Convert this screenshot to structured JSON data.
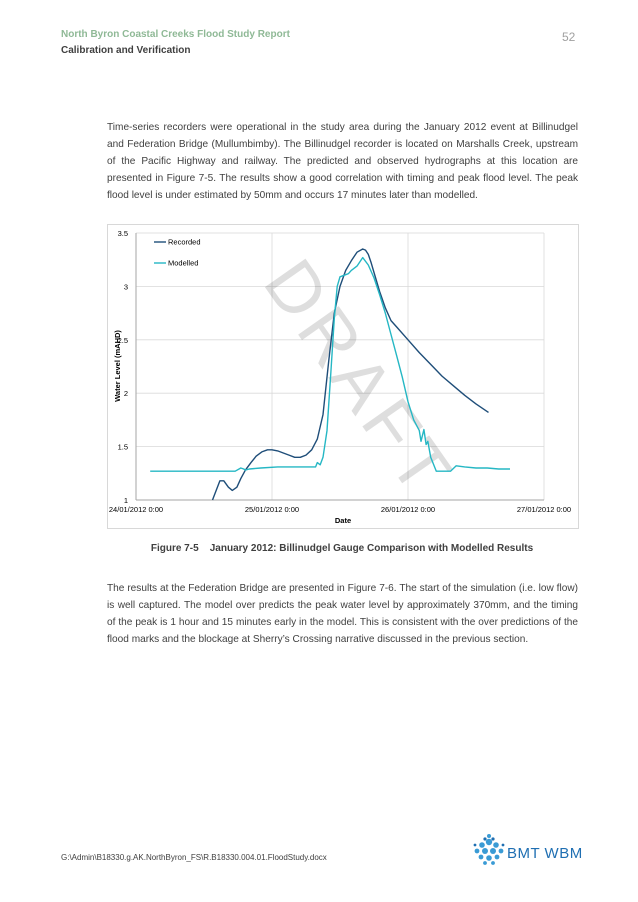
{
  "header": {
    "report_title": "North Byron Coastal Creeks Flood Study Report",
    "section": "Calibration and Verification",
    "page_number": "52"
  },
  "paragraphs": [
    "Time-series recorders were operational in the study area during the January 2012 event at Billinudgel and Federation Bridge (Mullumbimby). The Billinudgel recorder is located on Marshalls Creek, upstream of the Pacific Highway and railway. The predicted and observed hydrographs at this location are presented in Figure 7-5. The results show a good correlation with timing and peak flood level. The peak flood level is under estimated by 50mm and occurs 17 minutes later than modelled.",
    "The results at the Federation Bridge are presented in Figure 7-6. The start of the simulation (i.e. low flow) is well captured. The model over predicts the peak water level by approximately 370mm, and the timing of the peak is 1 hour and 15 minutes early in the model. This is consistent with the over predictions of the flood marks and the blockage at Sherry’s Crossing narrative discussed in the previous section."
  ],
  "figure": {
    "caption": "Figure 7-5    January 2012: Billinudgel Gauge Comparison with Modelled Results",
    "watermark": "DRAFT"
  },
  "chart_data": {
    "type": "line",
    "xlabel": "Date",
    "ylabel": "Water Level (mAHD)",
    "ylim": [
      1,
      3.5
    ],
    "y_ticks": [
      "1",
      "1.5",
      "2",
      "2.5",
      "3",
      "3.5"
    ],
    "x_ticks": [
      "24/01/2012 0:00",
      "25/01/2012 0:00",
      "26/01/2012 0:00",
      "27/01/2012 0:00"
    ],
    "x_tick_values": [
      0,
      24,
      48,
      72
    ],
    "xlim": [
      0,
      72
    ],
    "x_unit_note": "hours after 24/01/2012 0:00",
    "grid": true,
    "legend_position": "top-left",
    "series": [
      {
        "name": "Recorded",
        "color": "#1f4e79",
        "x": [
          13.5,
          14.8,
          15.5,
          16.3,
          17.0,
          17.8,
          18.5,
          19.3,
          20.3,
          21.2,
          22.2,
          23.2,
          24.0,
          25.0,
          26.0,
          27.0,
          28.0,
          29.0,
          30.0,
          31.0,
          32.0,
          33.0,
          34.0,
          35.0,
          36.0,
          37.0,
          38.0,
          39.0,
          40.0,
          40.5,
          41.0,
          41.5,
          42.0,
          43.0,
          44.0,
          45.0,
          46.0,
          48.0,
          50.0,
          52.0,
          54.0,
          56.0,
          58.0,
          60.0,
          62.2
        ],
        "values": [
          1.0,
          1.18,
          1.18,
          1.12,
          1.09,
          1.12,
          1.2,
          1.28,
          1.35,
          1.41,
          1.45,
          1.47,
          1.47,
          1.46,
          1.44,
          1.42,
          1.4,
          1.4,
          1.42,
          1.47,
          1.57,
          1.8,
          2.3,
          2.75,
          3.0,
          3.15,
          3.24,
          3.32,
          3.35,
          3.34,
          3.3,
          3.22,
          3.13,
          2.95,
          2.8,
          2.68,
          2.62,
          2.5,
          2.38,
          2.27,
          2.16,
          2.07,
          1.98,
          1.9,
          1.82
        ]
      },
      {
        "name": "Modelled",
        "color": "#25b7c4",
        "x": [
          2.5,
          8.0,
          13.5,
          15.0,
          17.0,
          17.5,
          18.5,
          19.0,
          19.3,
          20.0,
          22.0,
          25.0,
          28.0,
          31.0,
          31.7,
          32.0,
          32.5,
          33.0,
          33.7,
          34.4,
          35.0,
          35.5,
          36.0,
          37.0,
          37.5,
          38.0,
          39.0,
          40.0,
          41.0,
          42.0,
          43.0,
          44.0,
          45.0,
          46.0,
          47.0,
          48.0,
          49.0,
          50.0,
          50.3,
          50.8,
          51.2,
          51.5,
          52.0,
          53.0,
          54.0,
          55.0,
          55.5,
          56.5,
          58.0,
          60.0,
          62.0,
          64.0,
          66.0
        ],
        "values": [
          1.27,
          1.27,
          1.27,
          1.27,
          1.27,
          1.27,
          1.3,
          1.29,
          1.28,
          1.29,
          1.3,
          1.31,
          1.31,
          1.31,
          1.31,
          1.35,
          1.33,
          1.4,
          1.65,
          2.2,
          2.7,
          3.0,
          3.09,
          3.11,
          3.12,
          3.15,
          3.19,
          3.27,
          3.2,
          3.08,
          2.92,
          2.75,
          2.55,
          2.35,
          2.15,
          1.92,
          1.75,
          1.65,
          1.55,
          1.66,
          1.52,
          1.55,
          1.4,
          1.27,
          1.27,
          1.27,
          1.27,
          1.32,
          1.31,
          1.3,
          1.3,
          1.29,
          1.29
        ]
      }
    ]
  },
  "footer": {
    "path": "G:\\Admin\\B18330.g.AK.NorthByron_FS\\R.B18330.004.01.FloodStudy.docx",
    "logo_text": "BMT WBM"
  }
}
